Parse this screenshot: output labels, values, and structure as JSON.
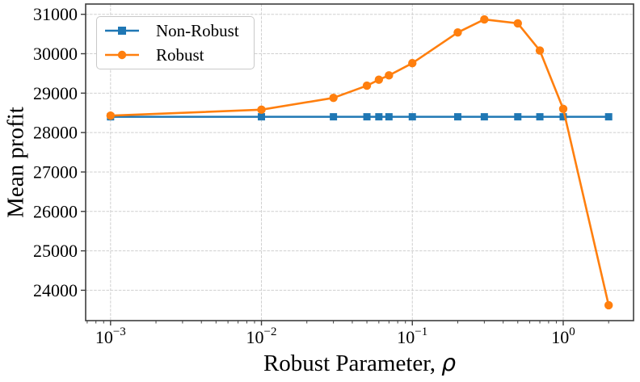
{
  "chart_data": {
    "type": "line",
    "title": "",
    "xlabel": "Robust Parameter, ρ",
    "xlabel_prefix": "Robust Parameter, ",
    "xlabel_symbol": "ρ",
    "ylabel": "Mean profit",
    "x_scale": "log",
    "xlim_log": [
      -3.165,
      0.466
    ],
    "ylim": [
      23230,
      31260
    ],
    "y_ticks": [
      24000,
      25000,
      26000,
      27000,
      28000,
      29000,
      30000,
      31000
    ],
    "x_tick_exponents": [
      -3,
      -2,
      -1,
      0
    ],
    "x_tick_base": "10",
    "grid": true,
    "legend_position": "upper-left",
    "x": [
      0.001,
      0.01,
      0.03,
      0.05,
      0.06,
      0.07,
      0.1,
      0.2,
      0.3,
      0.5,
      0.7,
      1.0,
      2.0
    ],
    "series": [
      {
        "name": "Non-Robust",
        "color": "#1f77b4",
        "marker": "square",
        "values": [
          28400,
          28400,
          28400,
          28400,
          28400,
          28400,
          28400,
          28400,
          28400,
          28400,
          28400,
          28400,
          28400
        ]
      },
      {
        "name": "Robust",
        "color": "#ff7f0e",
        "marker": "circle",
        "values": [
          28430,
          28580,
          28880,
          29190,
          29340,
          29450,
          29760,
          30540,
          30870,
          30770,
          30080,
          28600,
          23620
        ]
      }
    ],
    "background": "#ffffff"
  }
}
